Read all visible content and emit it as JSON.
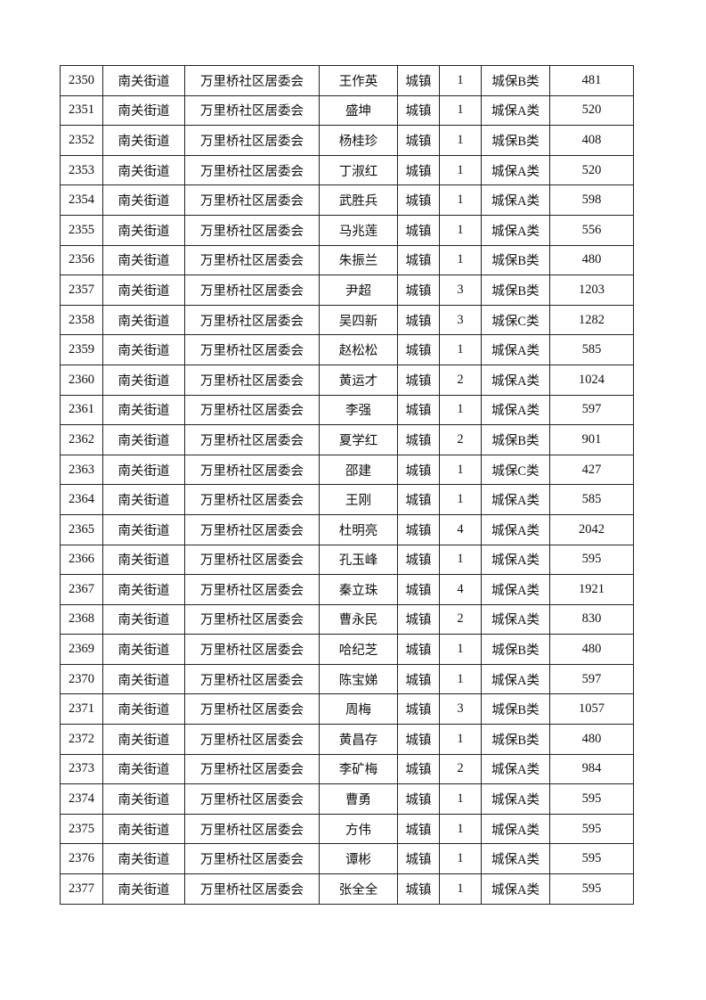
{
  "table": {
    "columns": [
      "no",
      "street",
      "community",
      "name",
      "type",
      "persons",
      "category",
      "amount"
    ],
    "rows": [
      [
        "2350",
        "南关街道",
        "万里桥社区居委会",
        "王作英",
        "城镇",
        "1",
        "城保B类",
        "481"
      ],
      [
        "2351",
        "南关街道",
        "万里桥社区居委会",
        "盛坤",
        "城镇",
        "1",
        "城保A类",
        "520"
      ],
      [
        "2352",
        "南关街道",
        "万里桥社区居委会",
        "杨桂珍",
        "城镇",
        "1",
        "城保B类",
        "408"
      ],
      [
        "2353",
        "南关街道",
        "万里桥社区居委会",
        "丁淑红",
        "城镇",
        "1",
        "城保A类",
        "520"
      ],
      [
        "2354",
        "南关街道",
        "万里桥社区居委会",
        "武胜兵",
        "城镇",
        "1",
        "城保A类",
        "598"
      ],
      [
        "2355",
        "南关街道",
        "万里桥社区居委会",
        "马兆莲",
        "城镇",
        "1",
        "城保A类",
        "556"
      ],
      [
        "2356",
        "南关街道",
        "万里桥社区居委会",
        "朱振兰",
        "城镇",
        "1",
        "城保B类",
        "480"
      ],
      [
        "2357",
        "南关街道",
        "万里桥社区居委会",
        "尹超",
        "城镇",
        "3",
        "城保B类",
        "1203"
      ],
      [
        "2358",
        "南关街道",
        "万里桥社区居委会",
        "吴四新",
        "城镇",
        "3",
        "城保C类",
        "1282"
      ],
      [
        "2359",
        "南关街道",
        "万里桥社区居委会",
        "赵松松",
        "城镇",
        "1",
        "城保A类",
        "585"
      ],
      [
        "2360",
        "南关街道",
        "万里桥社区居委会",
        "黄运才",
        "城镇",
        "2",
        "城保A类",
        "1024"
      ],
      [
        "2361",
        "南关街道",
        "万里桥社区居委会",
        "李强",
        "城镇",
        "1",
        "城保A类",
        "597"
      ],
      [
        "2362",
        "南关街道",
        "万里桥社区居委会",
        "夏学红",
        "城镇",
        "2",
        "城保B类",
        "901"
      ],
      [
        "2363",
        "南关街道",
        "万里桥社区居委会",
        "邵建",
        "城镇",
        "1",
        "城保C类",
        "427"
      ],
      [
        "2364",
        "南关街道",
        "万里桥社区居委会",
        "王刚",
        "城镇",
        "1",
        "城保A类",
        "585"
      ],
      [
        "2365",
        "南关街道",
        "万里桥社区居委会",
        "杜明亮",
        "城镇",
        "4",
        "城保A类",
        "2042"
      ],
      [
        "2366",
        "南关街道",
        "万里桥社区居委会",
        "孔玉峰",
        "城镇",
        "1",
        "城保A类",
        "595"
      ],
      [
        "2367",
        "南关街道",
        "万里桥社区居委会",
        "秦立珠",
        "城镇",
        "4",
        "城保A类",
        "1921"
      ],
      [
        "2368",
        "南关街道",
        "万里桥社区居委会",
        "曹永民",
        "城镇",
        "2",
        "城保A类",
        "830"
      ],
      [
        "2369",
        "南关街道",
        "万里桥社区居委会",
        "哈纪芝",
        "城镇",
        "1",
        "城保B类",
        "480"
      ],
      [
        "2370",
        "南关街道",
        "万里桥社区居委会",
        "陈宝娣",
        "城镇",
        "1",
        "城保A类",
        "597"
      ],
      [
        "2371",
        "南关街道",
        "万里桥社区居委会",
        "周梅",
        "城镇",
        "3",
        "城保B类",
        "1057"
      ],
      [
        "2372",
        "南关街道",
        "万里桥社区居委会",
        "黄昌存",
        "城镇",
        "1",
        "城保B类",
        "480"
      ],
      [
        "2373",
        "南关街道",
        "万里桥社区居委会",
        "李矿梅",
        "城镇",
        "2",
        "城保A类",
        "984"
      ],
      [
        "2374",
        "南关街道",
        "万里桥社区居委会",
        "曹勇",
        "城镇",
        "1",
        "城保A类",
        "595"
      ],
      [
        "2375",
        "南关街道",
        "万里桥社区居委会",
        "方伟",
        "城镇",
        "1",
        "城保A类",
        "595"
      ],
      [
        "2376",
        "南关街道",
        "万里桥社区居委会",
        "谭彬",
        "城镇",
        "1",
        "城保A类",
        "595"
      ],
      [
        "2377",
        "南关街道",
        "万里桥社区居委会",
        "张全全",
        "城镇",
        "1",
        "城保A类",
        "595"
      ]
    ]
  }
}
